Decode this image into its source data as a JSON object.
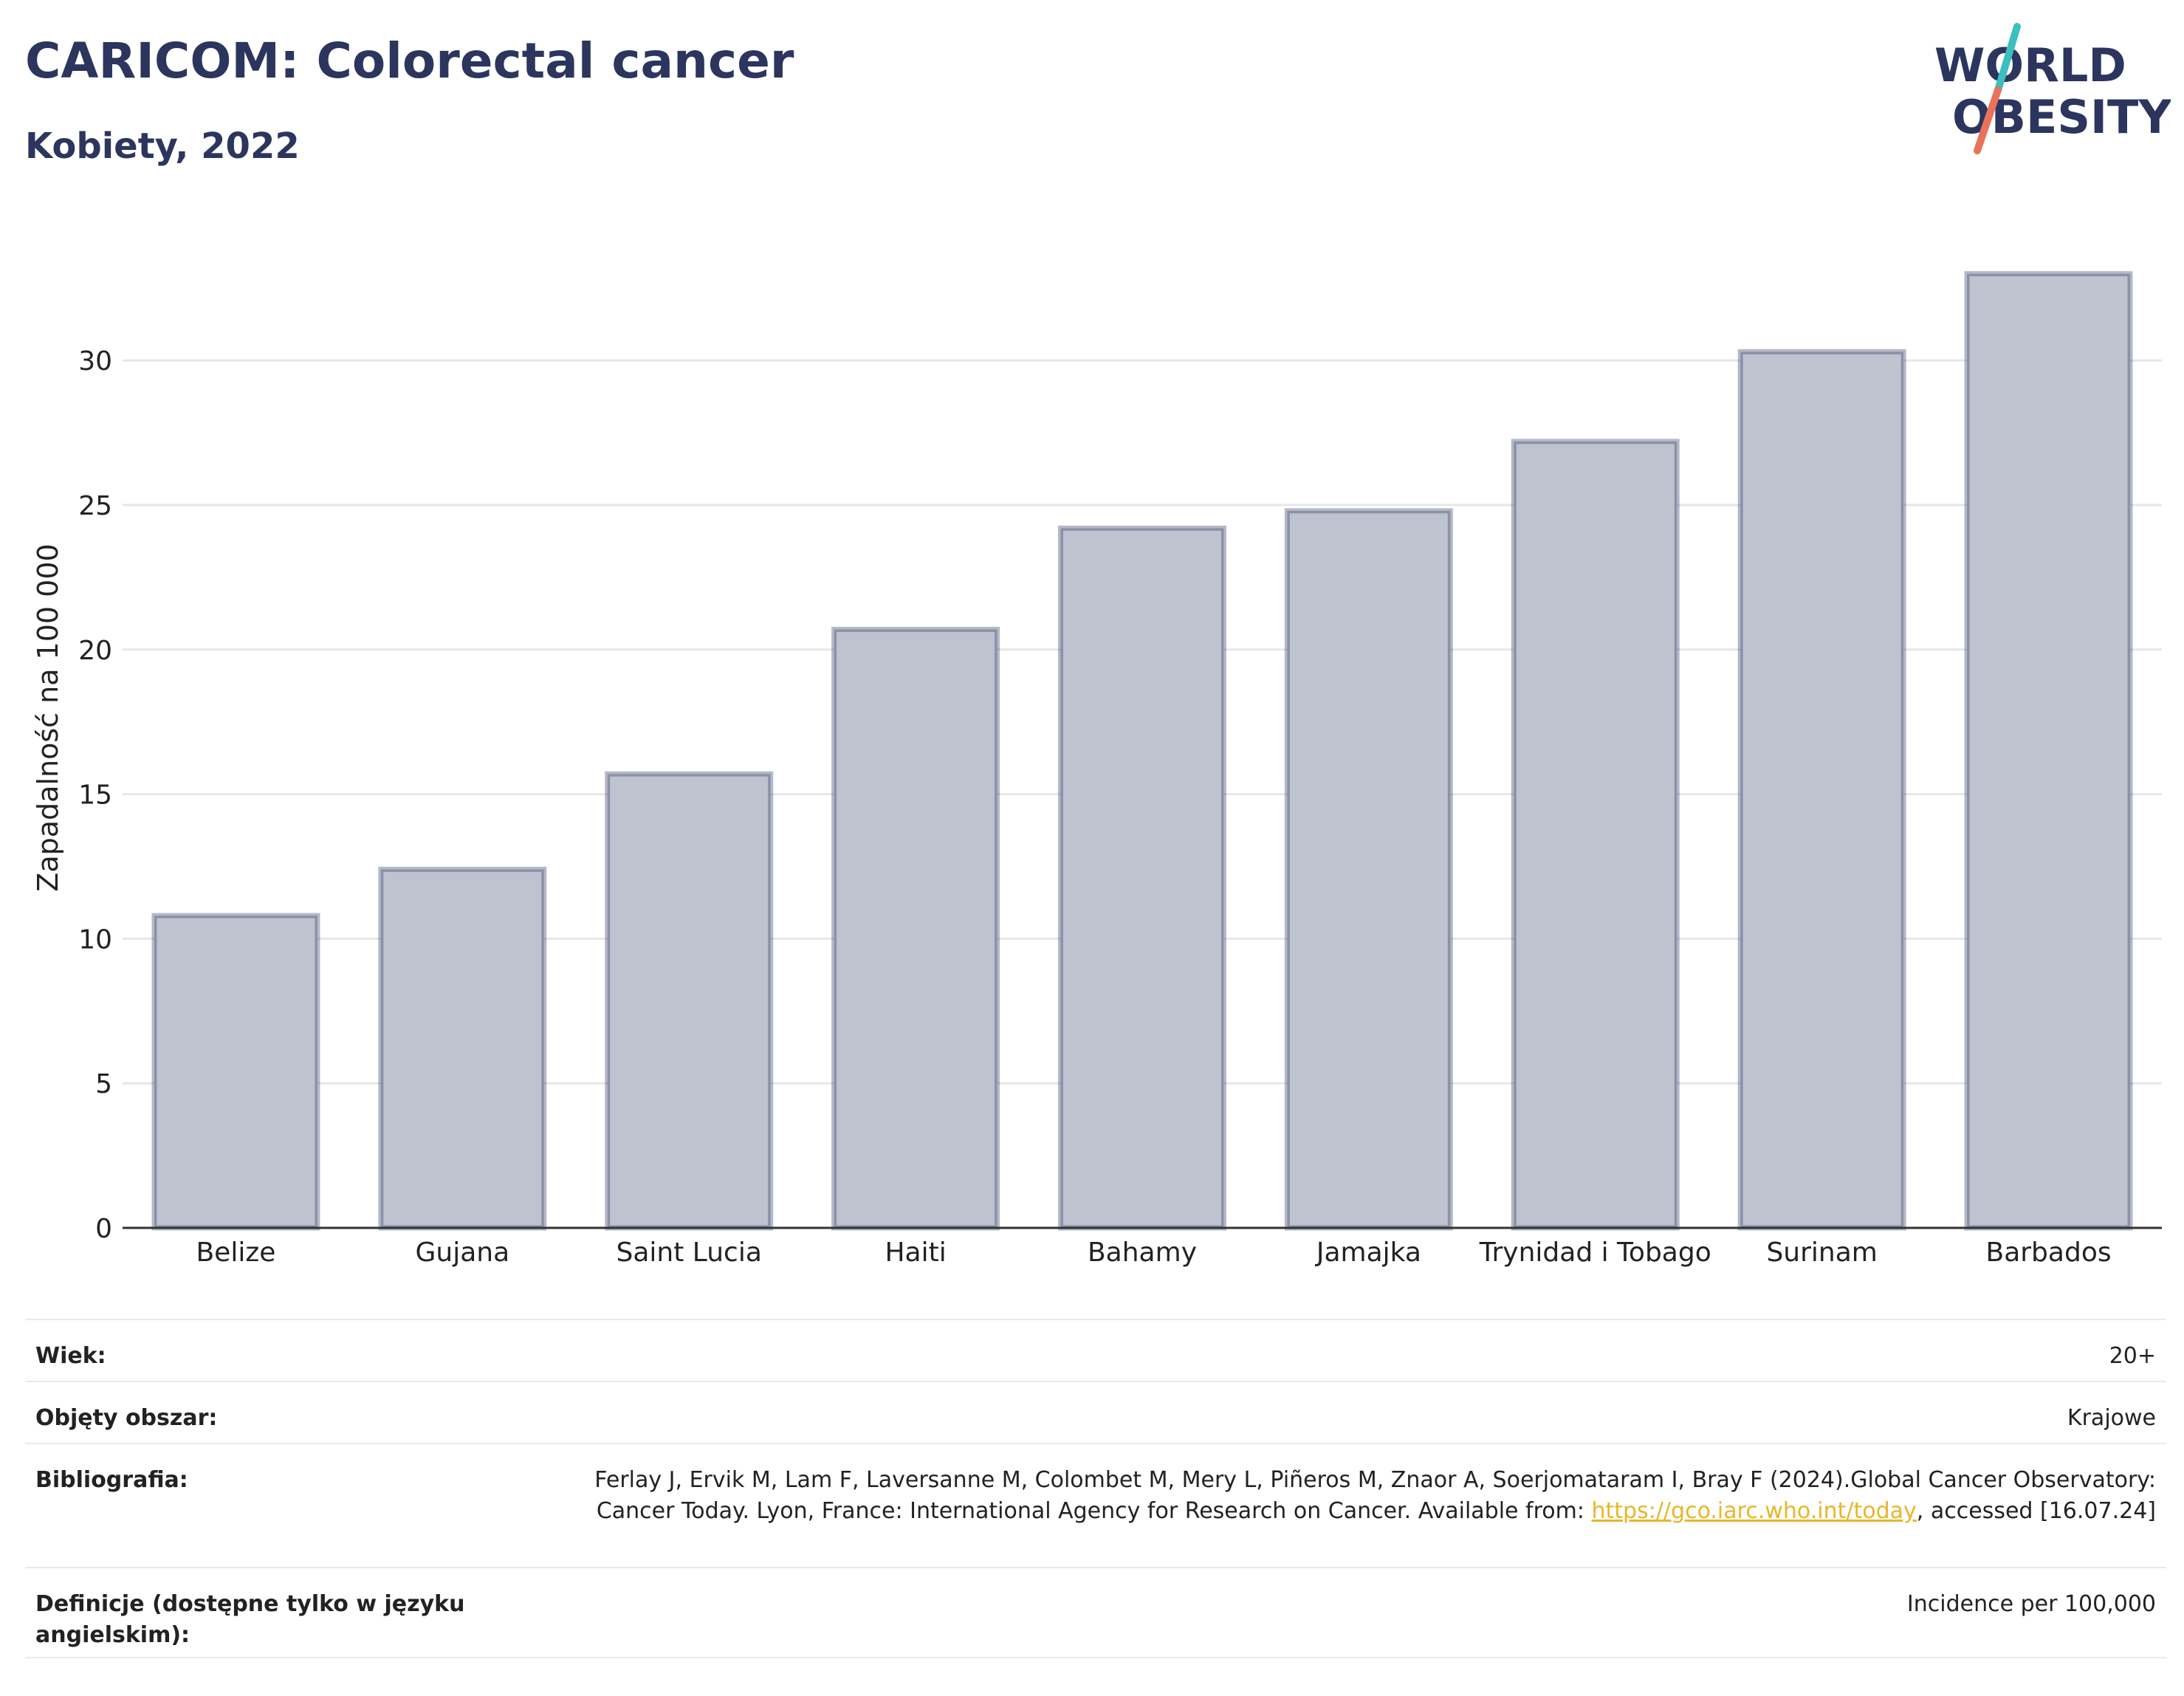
{
  "header": {
    "title": "CARICOM: Colorectal cancer",
    "subtitle": "Kobiety, 2022"
  },
  "logo": {
    "line1": "WORLD",
    "line2": "OBESITY",
    "colors": {
      "text": "#2b355e",
      "slash_top": "#3bbfbf",
      "slash_bottom": "#e8735a"
    }
  },
  "chart_data": {
    "type": "bar",
    "categories": [
      "Belize",
      "Gujana",
      "Saint Lucia",
      "Haiti",
      "Bahamy",
      "Jamajka",
      "Trynidad i Tobago",
      "Surinam",
      "Barbados"
    ],
    "values": [
      10.8,
      12.4,
      15.7,
      20.7,
      24.2,
      24.8,
      27.2,
      30.3,
      33.0
    ],
    "ylabel": "Zapadalność na 100 000",
    "xlabel": "",
    "ylim": [
      0,
      34.5
    ],
    "yticks": [
      0,
      5,
      10,
      15,
      20,
      25,
      30
    ],
    "grid": true,
    "colors": {
      "bar_fill": "#bfc3d0",
      "bar_stroke": "#2b355e",
      "grid": "#e6e7ec",
      "axis": "#333333"
    }
  },
  "meta": {
    "rows": [
      {
        "label": "Wiek:",
        "value": "20+"
      },
      {
        "label": "Objęty obszar:",
        "value": "Krajowe"
      },
      {
        "label": "Bibliografia:",
        "value_before_link": "Ferlay J, Ervik M, Lam F, Laversanne M, Colombet M, Mery L, Piñeros M, Znaor A, Soerjomataram I, Bray F (2024).Global Cancer Observatory: Cancer Today. Lyon, France: International Agency for Research on Cancer. Available from: ",
        "link_text": "https://gco.iarc.who.int/today",
        "value_after_link": ", accessed [16.07.24]"
      },
      {
        "label": "Definicje (dostępne tylko w języku angielskim):",
        "value": "Incidence per 100,000"
      }
    ]
  }
}
